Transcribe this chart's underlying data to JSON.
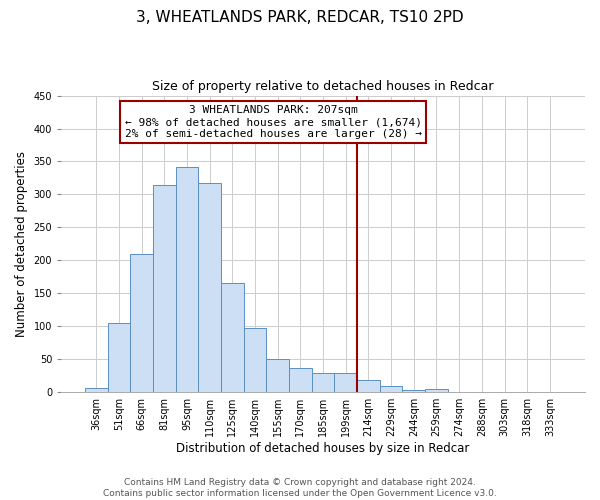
{
  "title": "3, WHEATLANDS PARK, REDCAR, TS10 2PD",
  "subtitle": "Size of property relative to detached houses in Redcar",
  "xlabel": "Distribution of detached houses by size in Redcar",
  "ylabel": "Number of detached properties",
  "bar_labels": [
    "36sqm",
    "51sqm",
    "66sqm",
    "81sqm",
    "95sqm",
    "110sqm",
    "125sqm",
    "140sqm",
    "155sqm",
    "170sqm",
    "185sqm",
    "199sqm",
    "214sqm",
    "229sqm",
    "244sqm",
    "259sqm",
    "274sqm",
    "288sqm",
    "303sqm",
    "318sqm",
    "333sqm"
  ],
  "bar_heights": [
    7,
    105,
    210,
    315,
    342,
    318,
    165,
    97,
    51,
    36,
    29,
    29,
    18,
    9,
    4,
    5,
    0,
    1,
    0,
    0,
    0
  ],
  "bar_color": "#ccdff5",
  "bar_edge_color": "#5a8fc3",
  "marker_color": "#990000",
  "annotation_title": "3 WHEATLANDS PARK: 207sqm",
  "annotation_line1": "← 98% of detached houses are smaller (1,674)",
  "annotation_line2": "2% of semi-detached houses are larger (28) →",
  "annotation_box_color": "#ffffff",
  "annotation_box_edge": "#990000",
  "ylim": [
    0,
    450
  ],
  "yticks": [
    0,
    50,
    100,
    150,
    200,
    250,
    300,
    350,
    400,
    450
  ],
  "footer_line1": "Contains HM Land Registry data © Crown copyright and database right 2024.",
  "footer_line2": "Contains public sector information licensed under the Open Government Licence v3.0.",
  "bg_color": "#ffffff",
  "grid_color": "#cccccc",
  "title_fontsize": 11,
  "subtitle_fontsize": 9,
  "axis_label_fontsize": 8.5,
  "tick_fontsize": 7,
  "annotation_fontsize": 8,
  "footer_fontsize": 6.5
}
